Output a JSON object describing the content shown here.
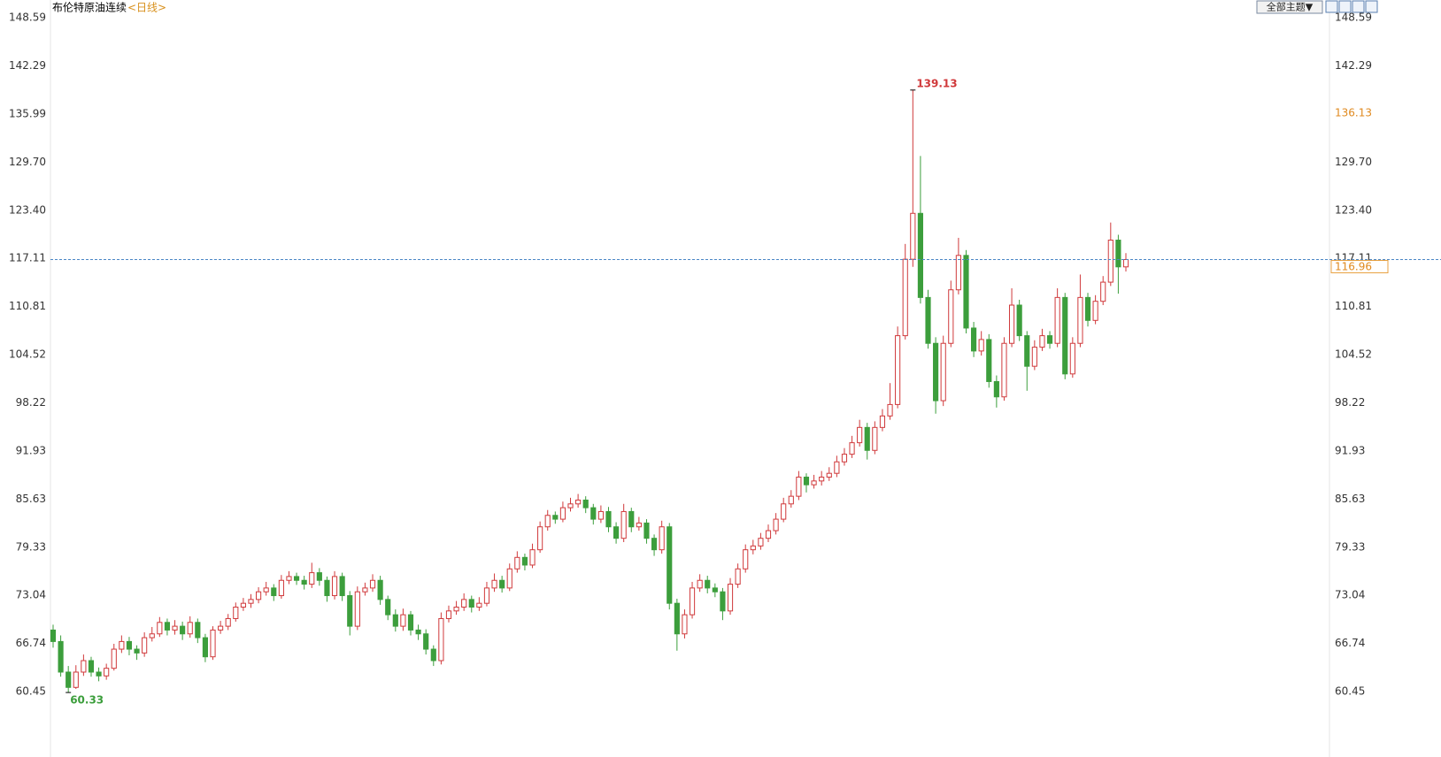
{
  "chart_data": {
    "type": "candlestick",
    "title": "布伦特原油连续",
    "period": "<日线>",
    "toolbar_label": "全部主题▼",
    "up_color": "#d0393b",
    "down_color": "#3c9e3c",
    "last_line_color": "#4a86c5",
    "grid": false,
    "ylim": [
      55.48,
      149.75
    ],
    "yticks": [
      148.59,
      142.29,
      135.99,
      {
        "value": 129.7,
        "label": "129.70"
      },
      {
        "value": 123.4,
        "label": "123.40"
      },
      117.11,
      110.81,
      104.52,
      98.22,
      91.93,
      85.63,
      79.33,
      73.04,
      66.74,
      60.45
    ],
    "crosshair_value": 136.13,
    "ohlc": [
      [
        68.5,
        69.2,
        66.2,
        67
      ],
      [
        67,
        67.8,
        62.4,
        63
      ],
      [
        63,
        63.8,
        60.33,
        61
      ],
      [
        61,
        63.9,
        60.8,
        63
      ],
      [
        63,
        65.3,
        62.5,
        64.5
      ],
      [
        64.5,
        65,
        62.4,
        63
      ],
      [
        63,
        63.6,
        61.8,
        62.5
      ],
      [
        62.5,
        64.1,
        62,
        63.5
      ],
      [
        63.5,
        66.7,
        63.2,
        66
      ],
      [
        66,
        67.8,
        65.5,
        67
      ],
      [
        67,
        67.6,
        65.2,
        66
      ],
      [
        66,
        66.5,
        64.6,
        65.5
      ],
      [
        65.5,
        68.2,
        65,
        67.5
      ],
      [
        67.5,
        68.9,
        67,
        68
      ],
      [
        68,
        70.2,
        67.6,
        69.5
      ],
      [
        69.5,
        70,
        67.8,
        68.5
      ],
      [
        68.5,
        69.8,
        67.9,
        69
      ],
      [
        69,
        69.6,
        67.2,
        68
      ],
      [
        68,
        70.3,
        67.5,
        69.5
      ],
      [
        69.5,
        70,
        66.8,
        67.5
      ],
      [
        67.5,
        68,
        64.3,
        65
      ],
      [
        65,
        69,
        64.6,
        68.5
      ],
      [
        68.5,
        69.7,
        68,
        69
      ],
      [
        69,
        70.6,
        68.5,
        70
      ],
      [
        70,
        72.1,
        69.6,
        71.5
      ],
      [
        71.5,
        72.7,
        71,
        72
      ],
      [
        72,
        73.2,
        71.4,
        72.5
      ],
      [
        72.5,
        74.1,
        72,
        73.5
      ],
      [
        73.5,
        74.8,
        73,
        74
      ],
      [
        74,
        74.5,
        72.3,
        73
      ],
      [
        73,
        75.7,
        72.6,
        75
      ],
      [
        75,
        76.2,
        74.5,
        75.5
      ],
      [
        75.5,
        76,
        74.4,
        75
      ],
      [
        75,
        75.6,
        73.8,
        74.5
      ],
      [
        74.5,
        77.3,
        74,
        76
      ],
      [
        76,
        76.6,
        74.3,
        75
      ],
      [
        75,
        75.5,
        72.2,
        73
      ],
      [
        73,
        76.2,
        72.5,
        75.5
      ],
      [
        75.5,
        76,
        72.3,
        73
      ],
      [
        73,
        73.6,
        67.8,
        69
      ],
      [
        69,
        74.2,
        68.5,
        73.5
      ],
      [
        73.5,
        74.7,
        73,
        74
      ],
      [
        74,
        75.8,
        73.5,
        75
      ],
      [
        75,
        75.6,
        71.8,
        72.5
      ],
      [
        72.5,
        73,
        69.8,
        70.5
      ],
      [
        70.5,
        71.2,
        68.3,
        69
      ],
      [
        69,
        71.3,
        68.4,
        70.5
      ],
      [
        70.5,
        71,
        67.8,
        68.5
      ],
      [
        68.5,
        69.2,
        67.2,
        68
      ],
      [
        68,
        68.6,
        65.3,
        66
      ],
      [
        66,
        66.5,
        63.8,
        64.5
      ],
      [
        64.5,
        70.8,
        64,
        70
      ],
      [
        70,
        71.7,
        69.5,
        71
      ],
      [
        71,
        72.3,
        70.5,
        71.5
      ],
      [
        71.5,
        73.3,
        71,
        72.5
      ],
      [
        72.5,
        73,
        70.8,
        71.5
      ],
      [
        71.5,
        72.8,
        71,
        72
      ],
      [
        72,
        74.8,
        71.6,
        74
      ],
      [
        74,
        75.9,
        73.5,
        75
      ],
      [
        75,
        75.6,
        73.4,
        74
      ],
      [
        74,
        77.2,
        73.6,
        76.5
      ],
      [
        76.5,
        78.8,
        76,
        78
      ],
      [
        78,
        78.5,
        76.3,
        77
      ],
      [
        77,
        79.8,
        76.6,
        79
      ],
      [
        79,
        82.7,
        78.6,
        82
      ],
      [
        82,
        84.2,
        81.5,
        83.5
      ],
      [
        83.5,
        84,
        82.4,
        83
      ],
      [
        83,
        85.3,
        82.6,
        84.5
      ],
      [
        84.5,
        85.8,
        84,
        85
      ],
      [
        85,
        86.3,
        84.5,
        85.5
      ],
      [
        85.5,
        86,
        83.8,
        84.5
      ],
      [
        84.5,
        85,
        82.3,
        83
      ],
      [
        83,
        84.8,
        82.5,
        84
      ],
      [
        84,
        84.6,
        81.3,
        82
      ],
      [
        82,
        82.6,
        79.8,
        80.5
      ],
      [
        80.5,
        85,
        80,
        84
      ],
      [
        84,
        84.5,
        81.3,
        82
      ],
      [
        82,
        83.3,
        81.5,
        82.5
      ],
      [
        82.5,
        83,
        79.8,
        80.5
      ],
      [
        80.5,
        81,
        78.2,
        79
      ],
      [
        79,
        82.8,
        78.5,
        82
      ],
      [
        82,
        82.5,
        71.2,
        72
      ],
      [
        72,
        72.6,
        65.8,
        68
      ],
      [
        68,
        71.2,
        67.4,
        70.5
      ],
      [
        70.5,
        74.8,
        70,
        74
      ],
      [
        74,
        75.8,
        73.5,
        75
      ],
      [
        75,
        75.6,
        73.3,
        74
      ],
      [
        74,
        74.6,
        72.8,
        73.5
      ],
      [
        73.5,
        74,
        69.8,
        71
      ],
      [
        71,
        75.3,
        70.5,
        74.5
      ],
      [
        74.5,
        77.2,
        74,
        76.5
      ],
      [
        76.5,
        79.7,
        76,
        79
      ],
      [
        79,
        80.3,
        78.4,
        79.5
      ],
      [
        79.5,
        81.2,
        79,
        80.5
      ],
      [
        80.5,
        82.3,
        80,
        81.5
      ],
      [
        81.5,
        83.8,
        81,
        83
      ],
      [
        83,
        85.8,
        82.6,
        85
      ],
      [
        85,
        86.8,
        84.5,
        86
      ],
      [
        86,
        89.3,
        85.5,
        88.5
      ],
      [
        88.5,
        89,
        86.5,
        87.5
      ],
      [
        87.5,
        88.8,
        87,
        88
      ],
      [
        88,
        89.3,
        87.4,
        88.5
      ],
      [
        88.5,
        89.8,
        88,
        89
      ],
      [
        89,
        91.3,
        88.5,
        90.5
      ],
      [
        90.5,
        92.3,
        90,
        91.5
      ],
      [
        91.5,
        93.9,
        91,
        93
      ],
      [
        93,
        96,
        92.5,
        95
      ],
      [
        95,
        95.6,
        90.8,
        92
      ],
      [
        92,
        95.8,
        91.5,
        95
      ],
      [
        95,
        97.4,
        94.5,
        96.5
      ],
      [
        96.5,
        100.8,
        96,
        98
      ],
      [
        98,
        108.2,
        97.5,
        107
      ],
      [
        107,
        119,
        106.5,
        117
      ],
      [
        117,
        139.13,
        116,
        123
      ],
      [
        123,
        130.5,
        111.2,
        112
      ],
      [
        112,
        113,
        105.3,
        106
      ],
      [
        106,
        106.8,
        96.8,
        98.5
      ],
      [
        98.5,
        107,
        97.8,
        106
      ],
      [
        106,
        114.2,
        105.5,
        113
      ],
      [
        113,
        119.8,
        112.4,
        117.5
      ],
      [
        117.5,
        118.2,
        107.3,
        108
      ],
      [
        108,
        108.8,
        104.2,
        105
      ],
      [
        105,
        107.6,
        104.4,
        106.5
      ],
      [
        106.5,
        107.2,
        100.2,
        101
      ],
      [
        101,
        101.8,
        97.6,
        99
      ],
      [
        99,
        106.8,
        98.5,
        106
      ],
      [
        106,
        113.2,
        105.5,
        111
      ],
      [
        111,
        111.7,
        106.3,
        107
      ],
      [
        107,
        107.6,
        99.8,
        103
      ],
      [
        103,
        106.4,
        102.5,
        105.5
      ],
      [
        105.5,
        107.9,
        105,
        107
      ],
      [
        107,
        107.6,
        105.3,
        106
      ],
      [
        106,
        113.2,
        105.5,
        112
      ],
      [
        112,
        112.6,
        101.3,
        102
      ],
      [
        102,
        106.8,
        101.5,
        106
      ],
      [
        106,
        115,
        105.5,
        112
      ],
      [
        112,
        112.6,
        108.2,
        109
      ],
      [
        109,
        112.3,
        108.5,
        111.5
      ],
      [
        111.5,
        114.8,
        111,
        114
      ],
      [
        114,
        121.8,
        113.5,
        119.5
      ],
      [
        119.5,
        120.2,
        112.5,
        116
      ],
      [
        116,
        117.8,
        115.4,
        116.96
      ]
    ]
  }
}
